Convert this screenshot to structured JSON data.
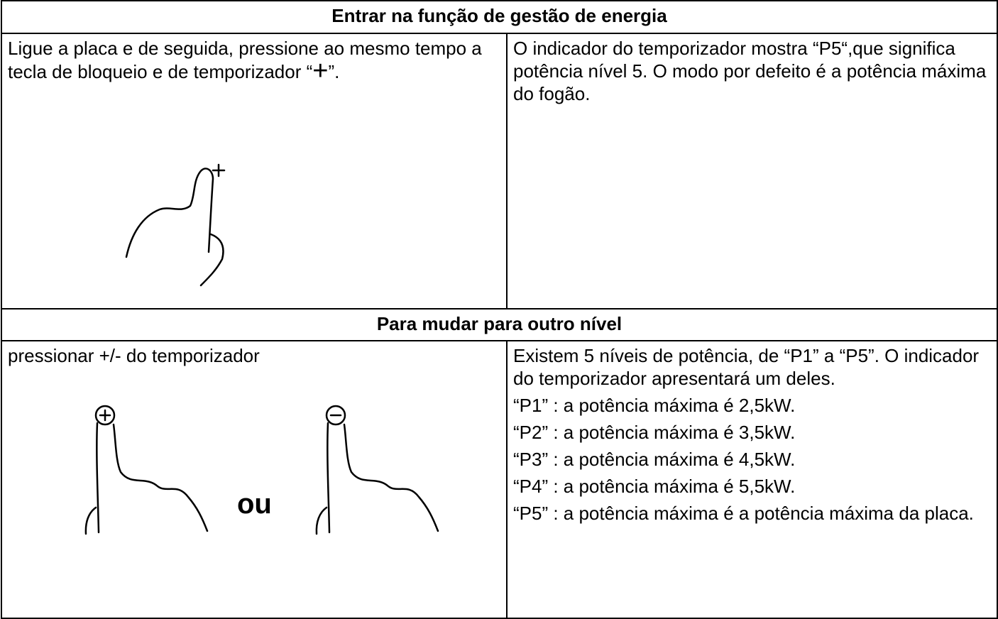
{
  "sections": [
    {
      "title": "Entrar na função de gestão de energia",
      "left": {
        "text_before": "Ligue a placa e de seguida, pressione ao mesmo tempo a tecla de bloqueio e de temporizador “",
        "symbol": "+",
        "text_after": "”."
      },
      "right": {
        "text": "O indicador do temporizador mostra “P5“,que significa potência nível 5. O modo por defeito é a potência máxima do fogão."
      }
    },
    {
      "title": "Para mudar para outro nível",
      "left": {
        "text": "pressionar +/- do temporizador",
        "or": "ou"
      },
      "right": {
        "paragraphs": [
          "Existem 5 níveis de potência, de “P1” a “P5”. O indicador do temporizador apresentará um deles.",
          "“P1” : a potência máxima é 2,5kW.",
          "“P2” : a potência máxima é 3,5kW.",
          "“P3” : a potência máxima é 4,5kW.",
          "“P4” : a potência máxima é 5,5kW.",
          "“P5” : a potência máxima é a potência máxima da placa."
        ]
      }
    }
  ]
}
